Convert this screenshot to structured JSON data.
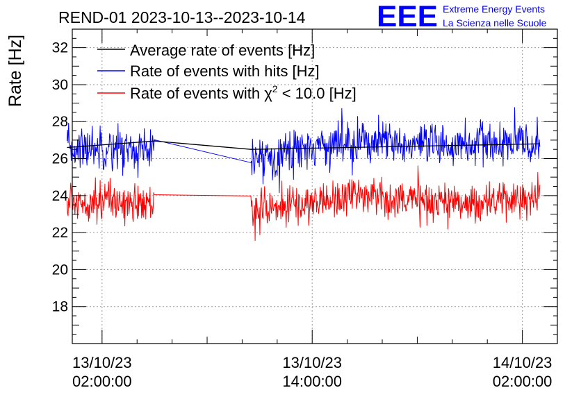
{
  "colors": {
    "average": "#000000",
    "hits": "#0000ff",
    "chi2": "#ff0000",
    "logo": "#0000ff",
    "grid": "#9a9a9a",
    "axis": "#000000"
  },
  "logo": {
    "mark": "EEE",
    "line1": "Extreme Energy Events",
    "line2": "La Scienza nelle Scuole"
  },
  "chart_data": {
    "type": "line",
    "title": "REND-01 2023-10-13--2023-10-14",
    "ylabel": "Rate [Hz]",
    "xlabel": "",
    "ylim": [
      16,
      33
    ],
    "xlim_hours": [
      -1.7,
      26.0
    ],
    "grid": true,
    "legend_position": "top-left",
    "yticks": [
      18,
      20,
      22,
      24,
      26,
      28,
      30,
      32
    ],
    "ytick_labels": [
      "18",
      "20",
      "22",
      "24",
      "26",
      "28",
      "30",
      "32"
    ],
    "xticks": [
      {
        "hours": 0,
        "date": "13/10/23",
        "time": "02:00:00"
      },
      {
        "hours": 12,
        "date": "13/10/23",
        "time": "14:00:00"
      },
      {
        "hours": 24,
        "date": "14/10/23",
        "time": "02:00:00"
      }
    ],
    "legend": [
      {
        "key": "average",
        "label": "Average rate of events [Hz]"
      },
      {
        "key": "hits",
        "label": "Rate of events with hits [Hz]"
      },
      {
        "key": "chi2",
        "label_prefix": "Rate of events with ",
        "chi_symbol": "χ",
        "chi_sup": "2",
        "label_suffix": " < 10.0 [Hz]"
      }
    ],
    "segments_hours": [
      [
        -2.0,
        3.0
      ],
      [
        8.5,
        25.0
      ]
    ],
    "series": [
      {
        "key": "average",
        "name": "Average rate of events [Hz]",
        "x_hours": [
          -2.0,
          3.0,
          8.5,
          25.0
        ],
        "values": [
          26.6,
          26.95,
          26.5,
          26.8
        ],
        "noise_amplitude": 0.0
      },
      {
        "key": "hits",
        "name": "Rate of events with hits [Hz]",
        "x_hours": [
          -2.0,
          0.0,
          3.0,
          8.5,
          11.5,
          14.5,
          18.5,
          21.0,
          25.0
        ],
        "values": [
          26.5,
          26.7,
          26.3,
          25.9,
          26.6,
          27.0,
          26.6,
          26.8,
          26.8
        ],
        "noise_amplitude": 1.0
      },
      {
        "key": "chi2",
        "name": "Rate of events with χ2 < 10.0 [Hz]",
        "x_hours": [
          -2.0,
          0.0,
          3.0,
          8.5,
          11.5,
          14.5,
          18.5,
          21.0,
          25.0
        ],
        "values": [
          23.6,
          23.8,
          23.4,
          23.3,
          23.5,
          24.1,
          23.7,
          23.6,
          23.9
        ],
        "noise_amplitude": 0.9
      }
    ]
  }
}
